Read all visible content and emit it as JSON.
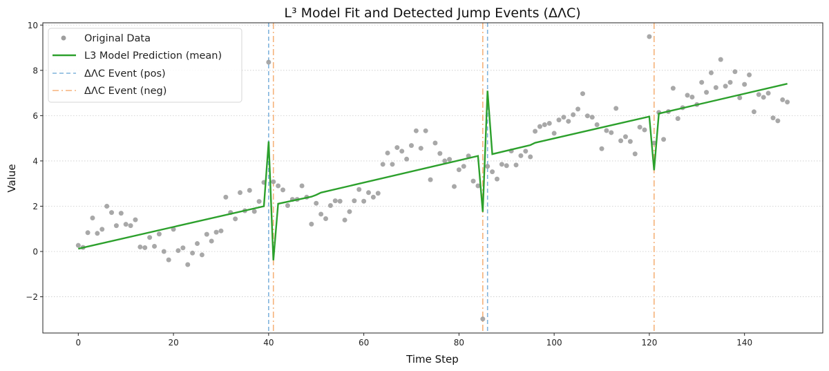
{
  "chart_data": {
    "type": "line",
    "title": "L³ Model Fit and Detected Jump Events (ΔΛC)",
    "xlabel": "Time Step",
    "ylabel": "Value",
    "xlim": [
      -7.45,
      156.45
    ],
    "ylim": [
      -3.6,
      10.1
    ],
    "xticks": [
      0,
      20,
      40,
      60,
      80,
      100,
      120,
      140
    ],
    "xtick_labels": [
      "0",
      "20",
      "40",
      "60",
      "80",
      "100",
      "120",
      "140"
    ],
    "yticks": [
      -2,
      0,
      2,
      4,
      6,
      8,
      10
    ],
    "ytick_labels": [
      "−2",
      "0",
      "2",
      "4",
      "6",
      "8",
      "10"
    ],
    "grid": "y-dotted",
    "legend_position": "top-left",
    "legend": [
      {
        "label": "Original Data",
        "kind": "marker",
        "color": "#9e9e9e"
      },
      {
        "label": "L3 Model Prediction (mean)",
        "kind": "line",
        "color": "#2ca02c"
      },
      {
        "label": "ΔΛC Event (pos)",
        "kind": "dashed",
        "color": "#7fb2dc"
      },
      {
        "label": "ΔΛC Event (neg)",
        "kind": "dashdot",
        "color": "#f5b27a"
      }
    ],
    "series": [
      {
        "name": "Original Data",
        "type": "scatter",
        "color": "#9e9e9e",
        "x": [
          0,
          1,
          2,
          3,
          4,
          5,
          6,
          7,
          8,
          9,
          10,
          11,
          12,
          13,
          14,
          15,
          16,
          17,
          18,
          19,
          20,
          21,
          22,
          23,
          24,
          25,
          26,
          27,
          28,
          29,
          30,
          31,
          32,
          33,
          34,
          35,
          36,
          37,
          38,
          39,
          40,
          41,
          42,
          43,
          44,
          45,
          46,
          47,
          48,
          49,
          50,
          51,
          52,
          53,
          54,
          55,
          56,
          57,
          58,
          59,
          60,
          61,
          62,
          63,
          64,
          65,
          66,
          67,
          68,
          69,
          70,
          71,
          72,
          73,
          74,
          75,
          76,
          77,
          78,
          79,
          80,
          81,
          82,
          83,
          84,
          85,
          86,
          87,
          88,
          89,
          90,
          91,
          92,
          93,
          94,
          95,
          96,
          97,
          98,
          99,
          100,
          101,
          102,
          103,
          104,
          105,
          106,
          107,
          108,
          109,
          110,
          111,
          112,
          113,
          114,
          115,
          116,
          117,
          118,
          119,
          120,
          121,
          122,
          123,
          124,
          125,
          126,
          127,
          128,
          129,
          130,
          131,
          132,
          133,
          134,
          135,
          136,
          137,
          138,
          139,
          140,
          141,
          142,
          143,
          144,
          145,
          146,
          147,
          148,
          149
        ],
        "y": [
          0.27,
          0.18,
          0.83,
          1.48,
          0.8,
          0.98,
          2.0,
          1.72,
          1.14,
          1.69,
          1.2,
          1.14,
          1.4,
          0.2,
          0.17,
          0.62,
          0.23,
          0.77,
          0.0,
          -0.37,
          0.98,
          0.04,
          0.16,
          -0.58,
          -0.07,
          0.35,
          -0.15,
          0.76,
          0.46,
          0.85,
          0.91,
          2.4,
          1.72,
          1.44,
          2.6,
          1.8,
          2.7,
          1.77,
          2.21,
          3.05,
          8.36,
          3.08,
          2.9,
          2.72,
          2.03,
          2.3,
          2.3,
          2.9,
          2.4,
          1.21,
          2.13,
          1.65,
          1.45,
          2.03,
          2.24,
          2.22,
          1.39,
          1.76,
          2.24,
          2.74,
          2.22,
          2.6,
          2.4,
          2.57,
          3.85,
          4.35,
          3.85,
          4.59,
          4.43,
          4.08,
          4.68,
          5.33,
          4.56,
          5.33,
          3.17,
          4.79,
          4.33,
          4.0,
          4.07,
          2.87,
          3.61,
          3.76,
          4.22,
          3.11,
          2.9,
          -2.98,
          3.76,
          3.52,
          3.2,
          3.85,
          3.79,
          4.44,
          3.82,
          4.23,
          4.43,
          4.18,
          5.31,
          5.52,
          5.6,
          5.66,
          5.22,
          5.81,
          5.93,
          5.75,
          6.04,
          6.29,
          6.97,
          5.99,
          5.93,
          5.6,
          4.54,
          5.34,
          5.25,
          6.32,
          4.89,
          5.07,
          4.86,
          4.31,
          5.49,
          5.37,
          9.49,
          4.79,
          6.14,
          4.95,
          6.18,
          7.21,
          5.87,
          6.35,
          6.9,
          6.82,
          6.49,
          7.47,
          7.03,
          7.89,
          7.24,
          8.48,
          7.3,
          7.47,
          7.94,
          6.79,
          7.38,
          7.8,
          6.17,
          6.93,
          6.81,
          6.99,
          5.9,
          5.77,
          6.7,
          6.6
        ]
      },
      {
        "name": "L3 Model Prediction (mean)",
        "type": "line",
        "color": "#2ca02c",
        "x": [
          0,
          1,
          39,
          40,
          41,
          42,
          49,
          50,
          51,
          84,
          85,
          86,
          87,
          95,
          96,
          97,
          120,
          121,
          122,
          149
        ],
        "y": [
          0.12,
          0.17,
          2.0,
          4.86,
          -0.39,
          2.11,
          2.42,
          2.5,
          2.6,
          4.22,
          1.75,
          7.1,
          4.3,
          4.7,
          4.8,
          4.85,
          5.96,
          3.59,
          6.09,
          7.41
        ]
      }
    ],
    "events": [
      {
        "x": 40,
        "kind": "pos",
        "color": "#7fb2dc"
      },
      {
        "x": 41,
        "kind": "neg",
        "color": "#f5b27a"
      },
      {
        "x": 85,
        "kind": "neg",
        "color": "#f5b27a"
      },
      {
        "x": 86,
        "kind": "pos",
        "color": "#7fb2dc"
      },
      {
        "x": 121,
        "kind": "neg",
        "color": "#f5b27a"
      }
    ]
  }
}
